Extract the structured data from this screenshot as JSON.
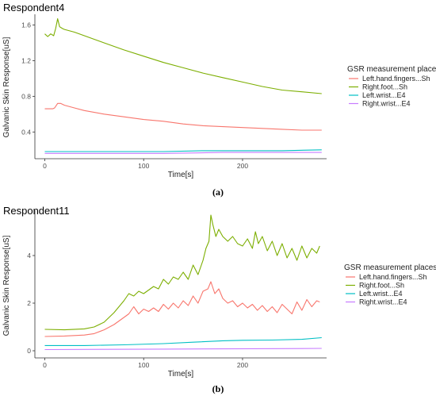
{
  "chart_data": [
    {
      "type": "line",
      "title": "Respondent4",
      "xlabel": "Time[s]",
      "ylabel": "Galvanic Skin Response[uS]",
      "xlim": [
        -10,
        285
      ],
      "ylim": [
        0.1,
        1.72
      ],
      "x_ticks": [
        0,
        100,
        200
      ],
      "y_ticks": [
        0.4,
        0.8,
        1.2,
        1.6
      ],
      "legend_title": "GSR measurement places",
      "legend_position": "right",
      "caption": "(a)",
      "series": [
        {
          "name": "Left.hand.fingers...Sh",
          "color": "#f8766d",
          "x": [
            0,
            8,
            10,
            13,
            16,
            20,
            30,
            40,
            60,
            80,
            100,
            120,
            140,
            160,
            180,
            200,
            220,
            240,
            260,
            280
          ],
          "y": [
            0.66,
            0.66,
            0.67,
            0.72,
            0.72,
            0.7,
            0.67,
            0.64,
            0.6,
            0.57,
            0.54,
            0.52,
            0.49,
            0.47,
            0.46,
            0.45,
            0.44,
            0.43,
            0.42,
            0.42
          ]
        },
        {
          "name": "Right.foot...Sh",
          "color": "#7cae00",
          "x": [
            0,
            3,
            6,
            9,
            11,
            13,
            15,
            18,
            20,
            30,
            40,
            60,
            80,
            100,
            120,
            140,
            160,
            180,
            200,
            220,
            240,
            260,
            280
          ],
          "y": [
            1.5,
            1.47,
            1.5,
            1.48,
            1.56,
            1.67,
            1.58,
            1.56,
            1.55,
            1.52,
            1.48,
            1.4,
            1.32,
            1.25,
            1.18,
            1.12,
            1.06,
            1.01,
            0.96,
            0.91,
            0.87,
            0.85,
            0.83
          ]
        },
        {
          "name": "Left.wrist...E4",
          "color": "#00bfc4",
          "x": [
            0,
            40,
            80,
            120,
            160,
            200,
            240,
            280
          ],
          "y": [
            0.18,
            0.18,
            0.18,
            0.18,
            0.19,
            0.19,
            0.19,
            0.2
          ]
        },
        {
          "name": "Right.wrist...E4",
          "color": "#c77cff",
          "x": [
            0,
            60,
            120,
            180,
            240,
            280
          ],
          "y": [
            0.16,
            0.16,
            0.16,
            0.17,
            0.17,
            0.17
          ]
        }
      ]
    },
    {
      "type": "line",
      "title": "Respondent11",
      "xlabel": "Time[s]",
      "ylabel": "Galvanic Skin Response[uS]",
      "xlim": [
        -10,
        285
      ],
      "ylim": [
        -0.3,
        5.9
      ],
      "x_ticks": [
        0,
        100,
        200
      ],
      "y_ticks": [
        0,
        2,
        4
      ],
      "legend_title": "GSR measurement places",
      "legend_position": "right",
      "caption": "(b)",
      "series": [
        {
          "name": "Left.hand.fingers...Sh",
          "color": "#f8766d",
          "x": [
            0,
            20,
            40,
            50,
            60,
            70,
            80,
            85,
            90,
            95,
            100,
            105,
            110,
            115,
            120,
            125,
            130,
            135,
            140,
            145,
            150,
            155,
            160,
            165,
            168,
            172,
            176,
            180,
            185,
            190,
            195,
            200,
            205,
            210,
            215,
            220,
            225,
            230,
            235,
            240,
            245,
            250,
            255,
            260,
            265,
            270,
            275,
            278
          ],
          "y": [
            0.6,
            0.62,
            0.66,
            0.72,
            0.88,
            1.1,
            1.4,
            1.55,
            1.85,
            1.55,
            1.75,
            1.65,
            1.8,
            1.65,
            1.95,
            1.75,
            2.0,
            1.8,
            2.1,
            1.9,
            2.3,
            2.0,
            2.5,
            2.6,
            2.9,
            2.4,
            2.6,
            2.2,
            2.0,
            2.1,
            1.85,
            2.0,
            1.8,
            1.95,
            1.7,
            1.9,
            1.65,
            1.85,
            1.6,
            1.95,
            1.75,
            1.55,
            2.05,
            1.7,
            2.15,
            1.85,
            2.1,
            2.05
          ]
        },
        {
          "name": "Right.foot...Sh",
          "color": "#7cae00",
          "x": [
            0,
            20,
            40,
            50,
            60,
            70,
            80,
            85,
            90,
            95,
            100,
            105,
            110,
            115,
            120,
            125,
            130,
            135,
            140,
            145,
            150,
            155,
            160,
            163,
            166,
            168,
            170,
            173,
            176,
            180,
            185,
            190,
            195,
            200,
            205,
            210,
            213,
            216,
            220,
            225,
            230,
            235,
            240,
            245,
            250,
            255,
            260,
            265,
            270,
            275,
            278
          ],
          "y": [
            0.9,
            0.88,
            0.92,
            1.0,
            1.2,
            1.6,
            2.1,
            2.4,
            2.3,
            2.5,
            2.4,
            2.55,
            2.7,
            2.6,
            3.0,
            2.8,
            3.1,
            3.0,
            3.3,
            3.0,
            3.6,
            3.2,
            3.8,
            4.3,
            4.6,
            5.7,
            5.3,
            4.8,
            5.1,
            4.8,
            4.6,
            4.8,
            4.5,
            4.4,
            4.7,
            4.3,
            5.0,
            4.5,
            4.8,
            4.2,
            4.6,
            4.0,
            4.5,
            3.9,
            4.3,
            3.8,
            4.4,
            3.9,
            4.3,
            4.1,
            4.4
          ]
        },
        {
          "name": "Left.wrist...E4",
          "color": "#00bfc4",
          "x": [
            0,
            40,
            80,
            120,
            150,
            180,
            200,
            230,
            260,
            280
          ],
          "y": [
            0.22,
            0.22,
            0.25,
            0.3,
            0.36,
            0.42,
            0.44,
            0.45,
            0.48,
            0.55
          ]
        },
        {
          "name": "Right.wrist...E4",
          "color": "#c77cff",
          "x": [
            0,
            60,
            120,
            180,
            240,
            280
          ],
          "y": [
            0.05,
            0.06,
            0.07,
            0.08,
            0.09,
            0.1
          ]
        }
      ]
    }
  ]
}
